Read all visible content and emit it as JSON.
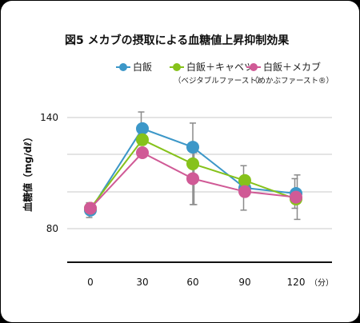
{
  "chart_data": {
    "type": "line",
    "title": "図5 メカブの摂取による血糖値上昇抑制効果",
    "ylabel": "血糖値（mg/dℓ）",
    "x_unit": "（分）",
    "x": [
      0,
      30,
      60,
      90,
      120
    ],
    "x_tick_labels": [
      "0",
      "30",
      "60",
      "90",
      "120"
    ],
    "y_tick_labels": [
      "140",
      "80"
    ],
    "y_ticks": [
      140,
      80
    ],
    "ylim": [
      80,
      140
    ],
    "grid": true,
    "legend_position": "top",
    "series": [
      {
        "name": "白飯",
        "sub": "",
        "color": "#3c97c8",
        "values": [
          90,
          134,
          124,
          102,
          99
        ],
        "err": [
          4,
          9,
          0,
          12,
          8
        ]
      },
      {
        "name": "白飯＋キャベツ",
        "sub": "（ベジタブルファースト）",
        "color": "#86c21b",
        "values": [
          91,
          128,
          115,
          106,
          96
        ],
        "err": [
          0,
          0,
          22,
          0,
          0
        ]
      },
      {
        "name": "白飯＋メカブ",
        "sub": "（めかぶファースト®）",
        "color": "#d05a96",
        "values": [
          91,
          121,
          107,
          100,
          97
        ],
        "err": [
          0,
          0,
          14,
          0,
          12
        ]
      }
    ]
  }
}
